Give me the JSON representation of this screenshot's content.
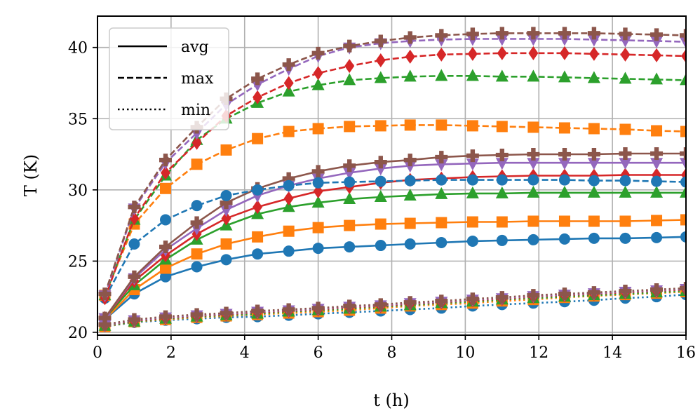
{
  "chart_data": {
    "type": "line",
    "title": "",
    "xlabel": "t (h)",
    "ylabel": "T (K)",
    "xlim": [
      0,
      16
    ],
    "ylim": [
      19.8,
      42.2
    ],
    "xticks": [
      0,
      2,
      4,
      6,
      8,
      10,
      12,
      14,
      16
    ],
    "yticks": [
      20,
      25,
      30,
      35,
      40
    ],
    "grid": true,
    "legend": {
      "position": "top-left",
      "entries": [
        {
          "label": "avg",
          "style": "solid"
        },
        {
          "label": "max",
          "style": "dashed"
        },
        {
          "label": "min",
          "style": "dotted"
        }
      ]
    },
    "x": [
      0.2,
      1.0,
      1.85,
      2.7,
      3.5,
      4.35,
      5.2,
      6.0,
      6.85,
      7.7,
      8.5,
      9.35,
      10.2,
      11.0,
      11.85,
      12.7,
      13.5,
      14.35,
      15.2,
      16.0
    ],
    "series": [
      {
        "name": "avg",
        "group": 1,
        "style": "solid",
        "marker": "circle",
        "color": "#1f77b4",
        "values": [
          20.9,
          22.7,
          23.9,
          24.6,
          25.1,
          25.5,
          25.7,
          25.9,
          26.0,
          26.1,
          26.2,
          26.3,
          26.4,
          26.45,
          26.5,
          26.55,
          26.6,
          26.6,
          26.65,
          26.7
        ]
      },
      {
        "name": "avg",
        "group": 2,
        "style": "solid",
        "marker": "square",
        "color": "#ff7f0e",
        "values": [
          20.9,
          23.0,
          24.5,
          25.5,
          26.2,
          26.7,
          27.1,
          27.35,
          27.5,
          27.6,
          27.65,
          27.7,
          27.75,
          27.75,
          27.8,
          27.8,
          27.8,
          27.8,
          27.85,
          27.9
        ]
      },
      {
        "name": "avg",
        "group": 3,
        "style": "solid",
        "marker": "triangle",
        "color": "#2ca02c",
        "values": [
          21.0,
          23.3,
          25.1,
          26.5,
          27.5,
          28.3,
          28.8,
          29.1,
          29.35,
          29.5,
          29.6,
          29.7,
          29.75,
          29.75,
          29.8,
          29.8,
          29.8,
          29.8,
          29.8,
          29.8
        ]
      },
      {
        "name": "avg",
        "group": 4,
        "style": "solid",
        "marker": "diamond",
        "color": "#d62728",
        "values": [
          21.0,
          23.6,
          25.4,
          26.9,
          28.0,
          28.8,
          29.4,
          29.9,
          30.2,
          30.5,
          30.7,
          30.8,
          30.9,
          30.95,
          31.0,
          31.0,
          31.0,
          31.05,
          31.05,
          31.05
        ]
      },
      {
        "name": "avg",
        "group": 5,
        "style": "solid",
        "marker": "triangle-down",
        "color": "#9467bd",
        "values": [
          21.0,
          23.8,
          25.8,
          27.3,
          28.6,
          29.6,
          30.3,
          30.8,
          31.2,
          31.5,
          31.7,
          31.8,
          31.85,
          31.9,
          31.9,
          31.9,
          31.9,
          31.9,
          31.9,
          31.9
        ]
      },
      {
        "name": "avg",
        "group": 6,
        "style": "solid",
        "marker": "plus",
        "color": "#8c564b",
        "values": [
          21.0,
          23.9,
          26.0,
          27.7,
          29.1,
          30.1,
          30.8,
          31.3,
          31.7,
          31.95,
          32.1,
          32.3,
          32.4,
          32.45,
          32.5,
          32.5,
          32.5,
          32.55,
          32.55,
          32.55
        ]
      },
      {
        "name": "max",
        "group": 1,
        "style": "dashed",
        "marker": "circle",
        "color": "#1f77b4",
        "values": [
          22.4,
          26.2,
          27.9,
          28.9,
          29.6,
          30.0,
          30.3,
          30.5,
          30.55,
          30.6,
          30.65,
          30.7,
          30.7,
          30.7,
          30.7,
          30.7,
          30.65,
          30.65,
          30.6,
          30.55
        ]
      },
      {
        "name": "max",
        "group": 2,
        "style": "dashed",
        "marker": "square",
        "color": "#ff7f0e",
        "values": [
          22.6,
          27.6,
          30.1,
          31.8,
          32.8,
          33.6,
          34.1,
          34.3,
          34.45,
          34.5,
          34.55,
          34.55,
          34.5,
          34.45,
          34.4,
          34.35,
          34.3,
          34.25,
          34.15,
          34.1
        ]
      },
      {
        "name": "max",
        "group": 3,
        "style": "dashed",
        "marker": "triangle",
        "color": "#2ca02c",
        "values": [
          22.6,
          27.9,
          31.0,
          33.5,
          35.0,
          36.1,
          36.9,
          37.35,
          37.7,
          37.85,
          37.95,
          38.0,
          38.0,
          37.95,
          37.95,
          37.9,
          37.85,
          37.8,
          37.75,
          37.7
        ]
      },
      {
        "name": "max",
        "group": 4,
        "style": "dashed",
        "marker": "diamond",
        "color": "#d62728",
        "values": [
          22.4,
          28.0,
          31.2,
          33.3,
          35.2,
          36.5,
          37.5,
          38.2,
          38.7,
          39.1,
          39.35,
          39.5,
          39.55,
          39.6,
          39.6,
          39.6,
          39.55,
          39.5,
          39.45,
          39.4
        ]
      },
      {
        "name": "max",
        "group": 5,
        "style": "dashed",
        "marker": "triangle-down",
        "color": "#9467bd",
        "values": [
          22.6,
          28.7,
          31.9,
          34.0,
          36.0,
          37.4,
          38.5,
          39.4,
          40.0,
          40.3,
          40.45,
          40.55,
          40.6,
          40.6,
          40.6,
          40.6,
          40.55,
          40.5,
          40.45,
          40.4
        ]
      },
      {
        "name": "max",
        "group": 6,
        "style": "dashed",
        "marker": "plus",
        "color": "#8c564b",
        "values": [
          22.7,
          28.8,
          32.1,
          34.4,
          36.4,
          37.8,
          38.8,
          39.6,
          40.1,
          40.45,
          40.7,
          40.85,
          40.95,
          41.0,
          41.0,
          41.0,
          41.0,
          40.95,
          40.9,
          40.85
        ]
      },
      {
        "name": "min",
        "group": 1,
        "style": "dotted",
        "marker": "circle",
        "color": "#1f77b4",
        "values": [
          20.4,
          20.7,
          20.85,
          20.95,
          21.05,
          21.1,
          21.2,
          21.3,
          21.4,
          21.5,
          21.6,
          21.7,
          21.85,
          21.95,
          22.05,
          22.15,
          22.25,
          22.4,
          22.5,
          22.65
        ]
      },
      {
        "name": "min",
        "group": 2,
        "style": "dotted",
        "marker": "square",
        "color": "#ff7f0e",
        "values": [
          20.4,
          20.75,
          20.9,
          21.05,
          21.15,
          21.25,
          21.35,
          21.45,
          21.55,
          21.7,
          21.85,
          21.95,
          22.05,
          22.2,
          22.3,
          22.45,
          22.55,
          22.65,
          22.75,
          22.85
        ]
      },
      {
        "name": "min",
        "group": 3,
        "style": "dotted",
        "marker": "triangle",
        "color": "#2ca02c",
        "values": [
          20.45,
          20.75,
          20.95,
          21.1,
          21.2,
          21.3,
          21.45,
          21.55,
          21.65,
          21.8,
          21.9,
          22.05,
          22.15,
          22.3,
          22.4,
          22.5,
          22.6,
          22.7,
          22.8,
          22.9
        ]
      },
      {
        "name": "min",
        "group": 4,
        "style": "dotted",
        "marker": "diamond",
        "color": "#d62728",
        "values": [
          20.5,
          20.8,
          21.0,
          21.15,
          21.25,
          21.4,
          21.5,
          21.6,
          21.75,
          21.85,
          22.0,
          22.1,
          22.25,
          22.35,
          22.5,
          22.6,
          22.7,
          22.8,
          22.9,
          23.0
        ]
      },
      {
        "name": "min",
        "group": 5,
        "style": "dotted",
        "marker": "triangle-down",
        "color": "#9467bd",
        "values": [
          20.5,
          20.85,
          21.05,
          21.2,
          21.3,
          21.45,
          21.55,
          21.65,
          21.8,
          21.9,
          22.05,
          22.15,
          22.3,
          22.4,
          22.55,
          22.65,
          22.75,
          22.85,
          22.95,
          23.05
        ]
      },
      {
        "name": "min",
        "group": 6,
        "style": "dotted",
        "marker": "plus",
        "color": "#8c564b",
        "values": [
          20.55,
          20.9,
          21.1,
          21.25,
          21.35,
          21.5,
          21.6,
          21.7,
          21.85,
          21.95,
          22.1,
          22.2,
          22.35,
          22.45,
          22.6,
          22.7,
          22.8,
          22.9,
          23.0,
          23.1
        ]
      }
    ]
  }
}
